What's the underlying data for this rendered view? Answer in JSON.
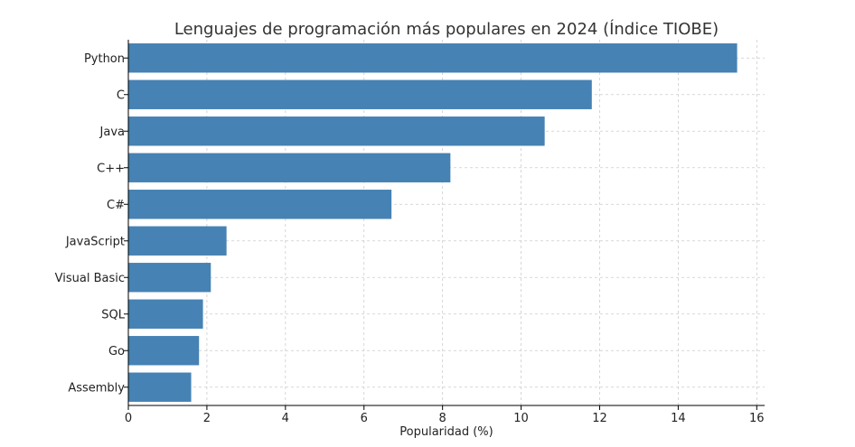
{
  "chart_data": {
    "type": "bar",
    "orientation": "horizontal",
    "title": "Lenguajes de programación más populares en 2024 (Índice TIOBE)",
    "xlabel": "Popularidad (%)",
    "ylabel": "",
    "categories": [
      "Python",
      "C",
      "Java",
      "C++",
      "C#",
      "JavaScript",
      "Visual Basic",
      "SQL",
      "Go",
      "Assembly"
    ],
    "values": [
      15.5,
      11.8,
      10.6,
      8.2,
      6.7,
      2.5,
      2.1,
      1.9,
      1.8,
      1.6
    ],
    "xlim": [
      0,
      16.2
    ],
    "xticks": [
      "0",
      "2",
      "4",
      "6",
      "8",
      "10",
      "12",
      "14",
      "16"
    ],
    "grid": true,
    "bar_color": "#4682b4"
  }
}
